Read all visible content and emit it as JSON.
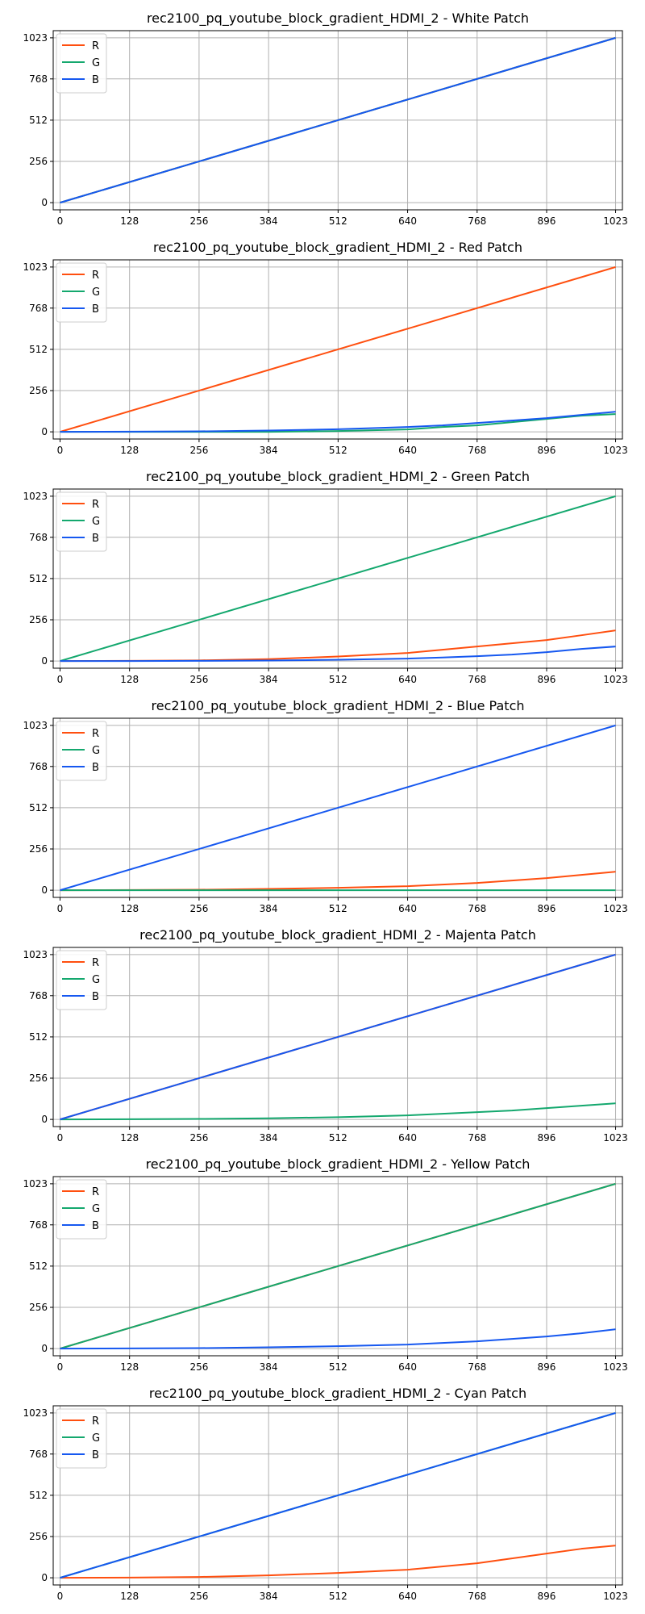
{
  "colors": {
    "R": "#ff4f0f",
    "G": "#14a86e",
    "B": "#1658f0"
  },
  "chart_data": [
    {
      "type": "line",
      "title": "rec2100_pq_youtube_block_gradient_HDMI_2 - White Patch",
      "xlim": [
        0,
        1023
      ],
      "ylim": [
        0,
        1023
      ],
      "xticks": [
        0,
        128,
        256,
        384,
        512,
        640,
        768,
        896,
        1023
      ],
      "yticks": [
        0,
        256,
        512,
        768,
        1023
      ],
      "grid": true,
      "legend": "upper left",
      "series": [
        {
          "name": "R",
          "x": [
            0,
            1023
          ],
          "values": [
            0,
            1023
          ]
        },
        {
          "name": "G",
          "x": [
            0,
            1023
          ],
          "values": [
            0,
            1023
          ]
        },
        {
          "name": "B",
          "x": [
            0,
            1023
          ],
          "values": [
            0,
            1023
          ]
        }
      ]
    },
    {
      "type": "line",
      "title": "rec2100_pq_youtube_block_gradient_HDMI_2 - Red Patch",
      "xlim": [
        0,
        1023
      ],
      "ylim": [
        0,
        1023
      ],
      "xticks": [
        0,
        128,
        256,
        384,
        512,
        640,
        768,
        896,
        1023
      ],
      "yticks": [
        0,
        256,
        512,
        768,
        1023
      ],
      "grid": true,
      "legend": "upper left",
      "series": [
        {
          "name": "R",
          "x": [
            0,
            1023
          ],
          "values": [
            0,
            1023
          ]
        },
        {
          "name": "G",
          "x": [
            0,
            128,
            256,
            384,
            512,
            640,
            704,
            768,
            832,
            896,
            960,
            1023
          ],
          "values": [
            0,
            0,
            0,
            0,
            5,
            15,
            30,
            40,
            60,
            80,
            100,
            110
          ]
        },
        {
          "name": "B",
          "x": [
            0,
            128,
            256,
            384,
            512,
            640,
            704,
            768,
            832,
            896,
            960,
            1023
          ],
          "values": [
            0,
            1,
            3,
            8,
            16,
            30,
            40,
            55,
            70,
            85,
            105,
            125
          ]
        }
      ]
    },
    {
      "type": "line",
      "title": "rec2100_pq_youtube_block_gradient_HDMI_2 - Green Patch",
      "xlim": [
        0,
        1023
      ],
      "ylim": [
        0,
        1023
      ],
      "xticks": [
        0,
        128,
        256,
        384,
        512,
        640,
        768,
        896,
        1023
      ],
      "yticks": [
        0,
        256,
        512,
        768,
        1023
      ],
      "grid": true,
      "legend": "upper left",
      "series": [
        {
          "name": "R",
          "x": [
            0,
            128,
            256,
            384,
            512,
            640,
            704,
            768,
            832,
            896,
            960,
            1023
          ],
          "values": [
            0,
            1,
            4,
            12,
            28,
            50,
            70,
            90,
            110,
            130,
            160,
            190
          ]
        },
        {
          "name": "G",
          "x": [
            0,
            1023
          ],
          "values": [
            0,
            1023
          ]
        },
        {
          "name": "B",
          "x": [
            0,
            128,
            256,
            384,
            512,
            640,
            704,
            768,
            832,
            896,
            960,
            1023
          ],
          "values": [
            0,
            0,
            1,
            3,
            8,
            15,
            22,
            30,
            40,
            55,
            75,
            90
          ]
        }
      ]
    },
    {
      "type": "line",
      "title": "rec2100_pq_youtube_block_gradient_HDMI_2 - Blue Patch",
      "xlim": [
        0,
        1023
      ],
      "ylim": [
        0,
        1023
      ],
      "xticks": [
        0,
        128,
        256,
        384,
        512,
        640,
        768,
        896,
        1023
      ],
      "yticks": [
        0,
        256,
        512,
        768,
        1023
      ],
      "grid": true,
      "legend": "upper left",
      "series": [
        {
          "name": "R",
          "x": [
            0,
            128,
            256,
            384,
            512,
            640,
            704,
            768,
            832,
            896,
            960,
            1023
          ],
          "values": [
            0,
            1,
            3,
            8,
            15,
            25,
            35,
            45,
            60,
            75,
            95,
            115
          ]
        },
        {
          "name": "G",
          "x": [
            0,
            1023
          ],
          "values": [
            0,
            0
          ]
        },
        {
          "name": "B",
          "x": [
            0,
            1023
          ],
          "values": [
            0,
            1023
          ]
        }
      ]
    },
    {
      "type": "line",
      "title": "rec2100_pq_youtube_block_gradient_HDMI_2 - Majenta Patch",
      "xlim": [
        0,
        1023
      ],
      "ylim": [
        0,
        1023
      ],
      "xticks": [
        0,
        128,
        256,
        384,
        512,
        640,
        768,
        896,
        1023
      ],
      "yticks": [
        0,
        256,
        512,
        768,
        1023
      ],
      "grid": true,
      "legend": "upper left",
      "series": [
        {
          "name": "R",
          "x": [
            0,
            1023
          ],
          "values": [
            0,
            1023
          ]
        },
        {
          "name": "G",
          "x": [
            0,
            128,
            256,
            384,
            512,
            640,
            704,
            768,
            832,
            896,
            960,
            1023
          ],
          "values": [
            0,
            1,
            3,
            7,
            14,
            25,
            35,
            45,
            55,
            70,
            85,
            100
          ]
        },
        {
          "name": "B",
          "x": [
            0,
            1023
          ],
          "values": [
            0,
            1023
          ]
        }
      ]
    },
    {
      "type": "line",
      "title": "rec2100_pq_youtube_block_gradient_HDMI_2 - Yellow Patch",
      "xlim": [
        0,
        1023
      ],
      "ylim": [
        0,
        1023
      ],
      "xticks": [
        0,
        128,
        256,
        384,
        512,
        640,
        768,
        896,
        1023
      ],
      "yticks": [
        0,
        256,
        512,
        768,
        1023
      ],
      "grid": true,
      "legend": "upper left",
      "series": [
        {
          "name": "R",
          "x": [
            0,
            1023
          ],
          "values": [
            0,
            1023
          ]
        },
        {
          "name": "G",
          "x": [
            0,
            1023
          ],
          "values": [
            0,
            1023
          ]
        },
        {
          "name": "B",
          "x": [
            0,
            128,
            256,
            384,
            512,
            640,
            704,
            768,
            832,
            896,
            960,
            1023
          ],
          "values": [
            0,
            1,
            3,
            8,
            15,
            25,
            35,
            45,
            60,
            75,
            95,
            120
          ]
        }
      ]
    },
    {
      "type": "line",
      "title": "rec2100_pq_youtube_block_gradient_HDMI_2 - Cyan Patch",
      "xlim": [
        0,
        1023
      ],
      "ylim": [
        0,
        1023
      ],
      "xticks": [
        0,
        128,
        256,
        384,
        512,
        640,
        768,
        896,
        1023
      ],
      "yticks": [
        0,
        256,
        512,
        768,
        1023
      ],
      "grid": true,
      "legend": "upper left",
      "series": [
        {
          "name": "R",
          "x": [
            0,
            128,
            256,
            384,
            512,
            640,
            704,
            768,
            832,
            896,
            960,
            1023
          ],
          "values": [
            0,
            1,
            5,
            15,
            30,
            50,
            70,
            90,
            120,
            150,
            180,
            200
          ]
        },
        {
          "name": "G",
          "x": [
            0,
            1023
          ],
          "values": [
            0,
            1023
          ]
        },
        {
          "name": "B",
          "x": [
            0,
            1023
          ],
          "values": [
            0,
            1023
          ]
        }
      ]
    }
  ]
}
